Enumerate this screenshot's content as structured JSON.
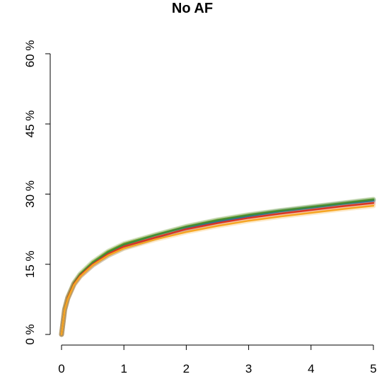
{
  "chart_data": {
    "type": "line",
    "title": "No AF",
    "xlabel": "",
    "ylabel": "",
    "xlim": [
      0,
      5
    ],
    "ylim": [
      0,
      60
    ],
    "x_ticks": [
      0,
      1,
      2,
      3,
      4,
      5
    ],
    "x_tick_labels": [
      "0",
      "1",
      "2",
      "3",
      "4",
      "5"
    ],
    "y_ticks": [
      0,
      15,
      30,
      45,
      60
    ],
    "y_tick_labels": [
      "0 %",
      "15 %",
      "30 %",
      "45 %",
      "60 %"
    ],
    "grid": false,
    "legend": "none",
    "x": [
      0,
      0.05,
      0.1,
      0.2,
      0.3,
      0.5,
      0.75,
      1,
      1.5,
      2,
      2.5,
      3,
      3.5,
      4,
      4.5,
      5
    ],
    "series": [
      {
        "color": "#7ea52a",
        "values": [
          0,
          5.5,
          8,
          11.1,
          13.0,
          15.5,
          17.8,
          19.4,
          21.3,
          23.1,
          24.5,
          25.6,
          26.5,
          27.3,
          28.1,
          28.9
        ]
      },
      {
        "color": "#2b6aa8",
        "values": [
          0,
          5.2,
          7.7,
          10.7,
          12.5,
          14.8,
          16.9,
          18.5,
          20.6,
          22.6,
          24.1,
          25.3,
          26.3,
          27.1,
          27.9,
          28.6
        ]
      },
      {
        "color": "#3f8a3a",
        "values": [
          0,
          5.3,
          7.8,
          10.9,
          12.8,
          15.3,
          17.6,
          19.2,
          21.2,
          23.0,
          24.4,
          25.5,
          26.4,
          27.2,
          28.0,
          28.8
        ]
      },
      {
        "color": "#d93425",
        "values": [
          0,
          5.3,
          7.8,
          10.8,
          12.6,
          15.0,
          17.2,
          18.8,
          20.7,
          22.5,
          23.8,
          24.9,
          25.8,
          26.6,
          27.4,
          28.1
        ]
      },
      {
        "color": "#f6a623",
        "values": [
          0,
          5.2,
          7.6,
          10.6,
          12.4,
          14.8,
          16.9,
          18.4,
          20.3,
          21.9,
          23.2,
          24.3,
          25.2,
          26.0,
          26.8,
          27.5
        ]
      }
    ]
  }
}
